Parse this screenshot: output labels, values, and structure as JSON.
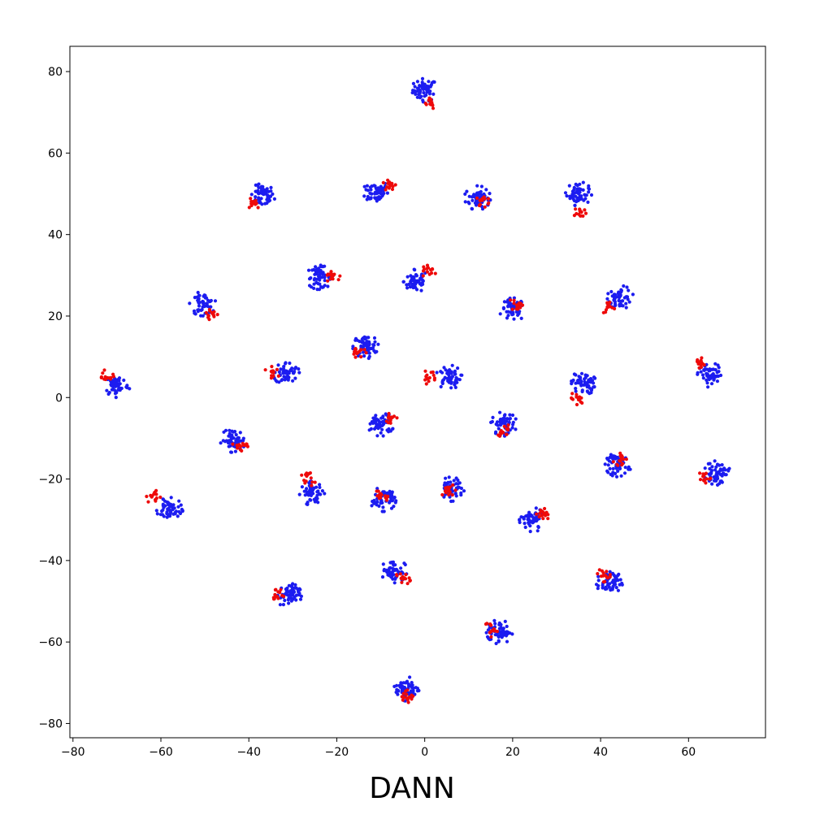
{
  "chart_data": {
    "type": "scatter",
    "title": "DANN",
    "xlabel": "",
    "ylabel": "",
    "xlim": [
      -80.7,
      77.5
    ],
    "ylim": [
      -83.5,
      86.2
    ],
    "xticks": [
      -80,
      -60,
      -40,
      -20,
      0,
      20,
      40,
      60
    ],
    "yticks": [
      -80,
      -60,
      -40,
      -20,
      0,
      20,
      40,
      60,
      80
    ],
    "xtick_labels": [
      "−80",
      "−60",
      "−40",
      "−20",
      "0",
      "20",
      "40",
      "60"
    ],
    "ytick_labels": [
      "−80",
      "−60",
      "−40",
      "−20",
      "0",
      "20",
      "40",
      "60",
      "80"
    ],
    "grid": false,
    "legend": null,
    "series": [
      {
        "color": "#1c1cf0",
        "points_per_cluster": 55,
        "clusters": [
          [
            0.0,
            75.5
          ],
          [
            -37.0,
            49.5
          ],
          [
            -11.0,
            50.5
          ],
          [
            12.0,
            49.0
          ],
          [
            35.0,
            50.0
          ],
          [
            -24.0,
            29.5
          ],
          [
            -2.0,
            28.5
          ],
          [
            20.0,
            21.5
          ],
          [
            44.5,
            24.5
          ],
          [
            -50.5,
            23.0
          ],
          [
            -13.5,
            12.5
          ],
          [
            -70.0,
            3.0
          ],
          [
            -31.5,
            6.0
          ],
          [
            5.5,
            5.0
          ],
          [
            36.0,
            3.5
          ],
          [
            65.0,
            5.5
          ],
          [
            -10.0,
            -6.5
          ],
          [
            18.0,
            -6.5
          ],
          [
            -43.5,
            -10.5
          ],
          [
            44.0,
            -16.5
          ],
          [
            -25.5,
            -23.5
          ],
          [
            -9.5,
            -25.0
          ],
          [
            6.0,
            -22.5
          ],
          [
            24.5,
            -30.0
          ],
          [
            -58.0,
            -27.5
          ],
          [
            66.5,
            -18.5
          ],
          [
            -7.0,
            -42.5
          ],
          [
            -31.0,
            -48.5
          ],
          [
            42.0,
            -45.5
          ],
          [
            17.0,
            -57.5
          ],
          [
            -4.0,
            -71.5
          ]
        ]
      },
      {
        "color": "#ee0a0a",
        "points_per_cluster": 14,
        "clusters": [
          [
            1.0,
            72.5
          ],
          [
            -39.0,
            48.0
          ],
          [
            -8.0,
            52.0
          ],
          [
            13.5,
            48.5
          ],
          [
            35.5,
            45.0
          ],
          [
            -21.0,
            30.0
          ],
          [
            1.0,
            31.0
          ],
          [
            21.0,
            23.0
          ],
          [
            42.0,
            22.0
          ],
          [
            -48.5,
            20.5
          ],
          [
            -15.0,
            11.5
          ],
          [
            -72.5,
            5.0
          ],
          [
            -34.5,
            6.5
          ],
          [
            1.0,
            5.0
          ],
          [
            34.5,
            -0.5
          ],
          [
            62.5,
            8.5
          ],
          [
            -8.0,
            -5.0
          ],
          [
            18.0,
            -8.0
          ],
          [
            -42.0,
            -12.0
          ],
          [
            44.5,
            -15.0
          ],
          [
            -26.5,
            -20.0
          ],
          [
            -9.5,
            -24.0
          ],
          [
            5.5,
            -23.0
          ],
          [
            27.0,
            -28.5
          ],
          [
            -61.5,
            -24.5
          ],
          [
            63.5,
            -19.5
          ],
          [
            -5.0,
            -44.5
          ],
          [
            -33.5,
            -48.5
          ],
          [
            40.5,
            -43.5
          ],
          [
            15.0,
            -57.0
          ],
          [
            -3.5,
            -73.5
          ]
        ]
      }
    ]
  }
}
